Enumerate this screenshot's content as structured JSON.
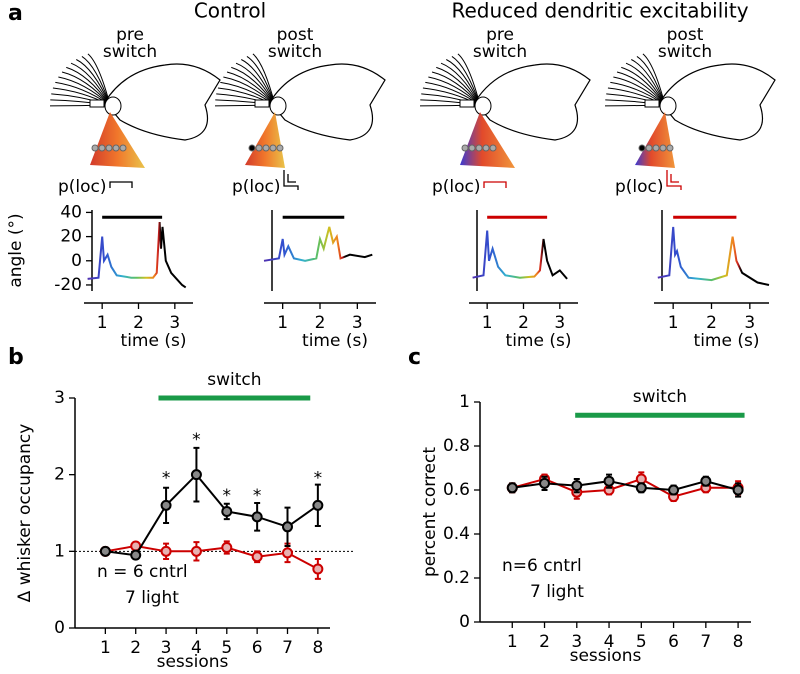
{
  "panel_labels": [
    "a",
    "b",
    "c"
  ],
  "groups": [
    {
      "title": "Control",
      "color": "#000000"
    },
    {
      "title": "Reduced dendritic excitability",
      "color": "#cc0000"
    }
  ],
  "conditions": [
    {
      "label": [
        "pre",
        "switch"
      ],
      "p_label": "p(loc)",
      "color": "#000000"
    },
    {
      "label": [
        "post",
        "switch"
      ],
      "p_label": "p(loc)",
      "color": "#000000"
    },
    {
      "label": [
        "pre",
        "switch"
      ],
      "p_label": "p(loc)",
      "color": "#cc0000"
    },
    {
      "label": [
        "post",
        "switch"
      ],
      "p_label": "p(loc)",
      "color": "#cc0000"
    }
  ],
  "chart_data": [
    {
      "type": "trace",
      "xlabel": "time (s)",
      "ylabel": "angle (°)",
      "xlim": [
        0.5,
        3.5
      ],
      "ylim": [
        -25,
        42
      ],
      "xticks": [
        1,
        2,
        3
      ],
      "yticks": [
        -20,
        0,
        20,
        40
      ],
      "bar": {
        "x": [
          1,
          2.65
        ],
        "y": 36,
        "color": "#000000"
      },
      "x": [
        0.6,
        0.9,
        1.0,
        1.05,
        1.15,
        1.25,
        1.4,
        1.8,
        2.4,
        2.5,
        2.58,
        2.62,
        2.66,
        2.75,
        2.9,
        3.2,
        3.3
      ],
      "values": [
        -15,
        -14,
        20,
        0,
        5,
        -5,
        -12,
        -14,
        -14,
        -10,
        32,
        10,
        28,
        0,
        -10,
        -20,
        -22
      ]
    },
    {
      "type": "trace",
      "xlabel": "time (s)",
      "xlim": [
        0.5,
        3.5
      ],
      "ylim": [
        -25,
        42
      ],
      "xticks": [
        1,
        2,
        3
      ],
      "bar": {
        "x": [
          1,
          2.65
        ],
        "y": 36,
        "color": "#000000"
      },
      "x": [
        0.5,
        0.9,
        1.0,
        1.05,
        1.15,
        1.3,
        1.6,
        1.9,
        2.0,
        2.1,
        2.25,
        2.35,
        2.45,
        2.55,
        2.8,
        3.2,
        3.4
      ],
      "values": [
        0,
        2,
        18,
        5,
        12,
        2,
        0,
        2,
        18,
        10,
        28,
        15,
        20,
        2,
        5,
        3,
        5
      ]
    },
    {
      "type": "trace",
      "xlabel": "time (s)",
      "xlim": [
        0.5,
        3.5
      ],
      "ylim": [
        -25,
        42
      ],
      "xticks": [
        1,
        2,
        3
      ],
      "bar": {
        "x": [
          1,
          2.65
        ],
        "y": 36,
        "color": "#cc0000"
      },
      "x": [
        0.6,
        0.9,
        1.0,
        1.05,
        1.15,
        1.3,
        1.5,
        1.9,
        2.3,
        2.45,
        2.55,
        2.65,
        2.8,
        3.0,
        3.2
      ],
      "values": [
        -14,
        -12,
        25,
        0,
        10,
        -5,
        -12,
        -14,
        -13,
        -8,
        18,
        0,
        -12,
        -8,
        -15
      ]
    },
    {
      "type": "trace",
      "xlabel": "time (s)",
      "xlim": [
        0.5,
        3.5
      ],
      "ylim": [
        -25,
        42
      ],
      "xticks": [
        1,
        2,
        3
      ],
      "bar": {
        "x": [
          1,
          2.65
        ],
        "y": 36,
        "color": "#cc0000"
      },
      "x": [
        0.6,
        0.9,
        1.0,
        1.05,
        1.1,
        1.2,
        1.4,
        2.0,
        2.4,
        2.55,
        2.65,
        2.8,
        3.2,
        3.5
      ],
      "values": [
        -14,
        -12,
        28,
        5,
        8,
        -5,
        -14,
        -16,
        -12,
        20,
        0,
        -10,
        -18,
        -20
      ]
    },
    {
      "type": "errorline",
      "xlabel": "sessions",
      "ylabel": "Δ whisker occupancy",
      "xlim": [
        0,
        8.4
      ],
      "ylim": [
        0,
        3
      ],
      "xticks": [
        1,
        2,
        3,
        4,
        5,
        6,
        7,
        8
      ],
      "yticks": [
        0,
        1,
        2,
        3
      ],
      "hline": 1,
      "bar": {
        "x": [
          2.75,
          7.75
        ],
        "y": 3,
        "color": "#1a9a48",
        "label": "switch"
      },
      "annotations": [
        {
          "x": 3,
          "y": 1.95,
          "text": "*"
        },
        {
          "x": 4,
          "y": 2.45,
          "text": "*"
        },
        {
          "x": 5,
          "y": 1.72,
          "text": "*"
        },
        {
          "x": 6,
          "y": 1.72,
          "text": "*"
        },
        {
          "x": 8,
          "y": 1.95,
          "text": "*"
        }
      ],
      "series": [
        {
          "name": "n = 6 cntrl",
          "color": "#000000",
          "fill": "#888888",
          "x": [
            1,
            2,
            3,
            4,
            5,
            6,
            7,
            8
          ],
          "values": [
            1,
            0.95,
            1.6,
            2.0,
            1.52,
            1.45,
            1.32,
            1.6
          ],
          "errors": [
            0.03,
            0.03,
            0.23,
            0.35,
            0.1,
            0.18,
            0.25,
            0.27
          ]
        },
        {
          "name": "7 light",
          "color": "#cc0000",
          "fill": "#e8b0b0",
          "x": [
            1,
            2,
            3,
            4,
            5,
            6,
            7,
            8
          ],
          "values": [
            1,
            1.07,
            1.0,
            1.0,
            1.05,
            0.93,
            0.98,
            0.77
          ],
          "errors": [
            0.02,
            0.03,
            0.1,
            0.12,
            0.08,
            0.07,
            0.12,
            0.13
          ]
        }
      ]
    },
    {
      "type": "errorline",
      "xlabel": "sessions",
      "ylabel": "percent correct",
      "xlim": [
        0,
        8.4
      ],
      "ylim": [
        0,
        1
      ],
      "xticks": [
        1,
        2,
        3,
        4,
        5,
        6,
        7,
        8
      ],
      "yticks": [
        0,
        0.2,
        0.4,
        0.6,
        0.8,
        1
      ],
      "bar": {
        "x": [
          2.95,
          8.2
        ],
        "y": 0.94,
        "color": "#1a9a48",
        "label": "switch"
      },
      "series": [
        {
          "name": "n=6 cntrl",
          "color": "#000000",
          "fill": "#888888",
          "x": [
            1,
            2,
            3,
            4,
            5,
            6,
            7,
            8
          ],
          "values": [
            0.61,
            0.63,
            0.62,
            0.64,
            0.61,
            0.6,
            0.64,
            0.6
          ],
          "errors": [
            0.02,
            0.03,
            0.03,
            0.03,
            0.02,
            0.02,
            0.02,
            0.03
          ]
        },
        {
          "name": "7 light",
          "color": "#cc0000",
          "fill": "#e8b0b0",
          "x": [
            1,
            2,
            3,
            4,
            5,
            6,
            7,
            8
          ],
          "values": [
            0.61,
            0.65,
            0.59,
            0.6,
            0.65,
            0.57,
            0.61,
            0.61
          ],
          "errors": [
            0.02,
            0.02,
            0.03,
            0.02,
            0.03,
            0.02,
            0.02,
            0.03
          ]
        }
      ]
    }
  ]
}
